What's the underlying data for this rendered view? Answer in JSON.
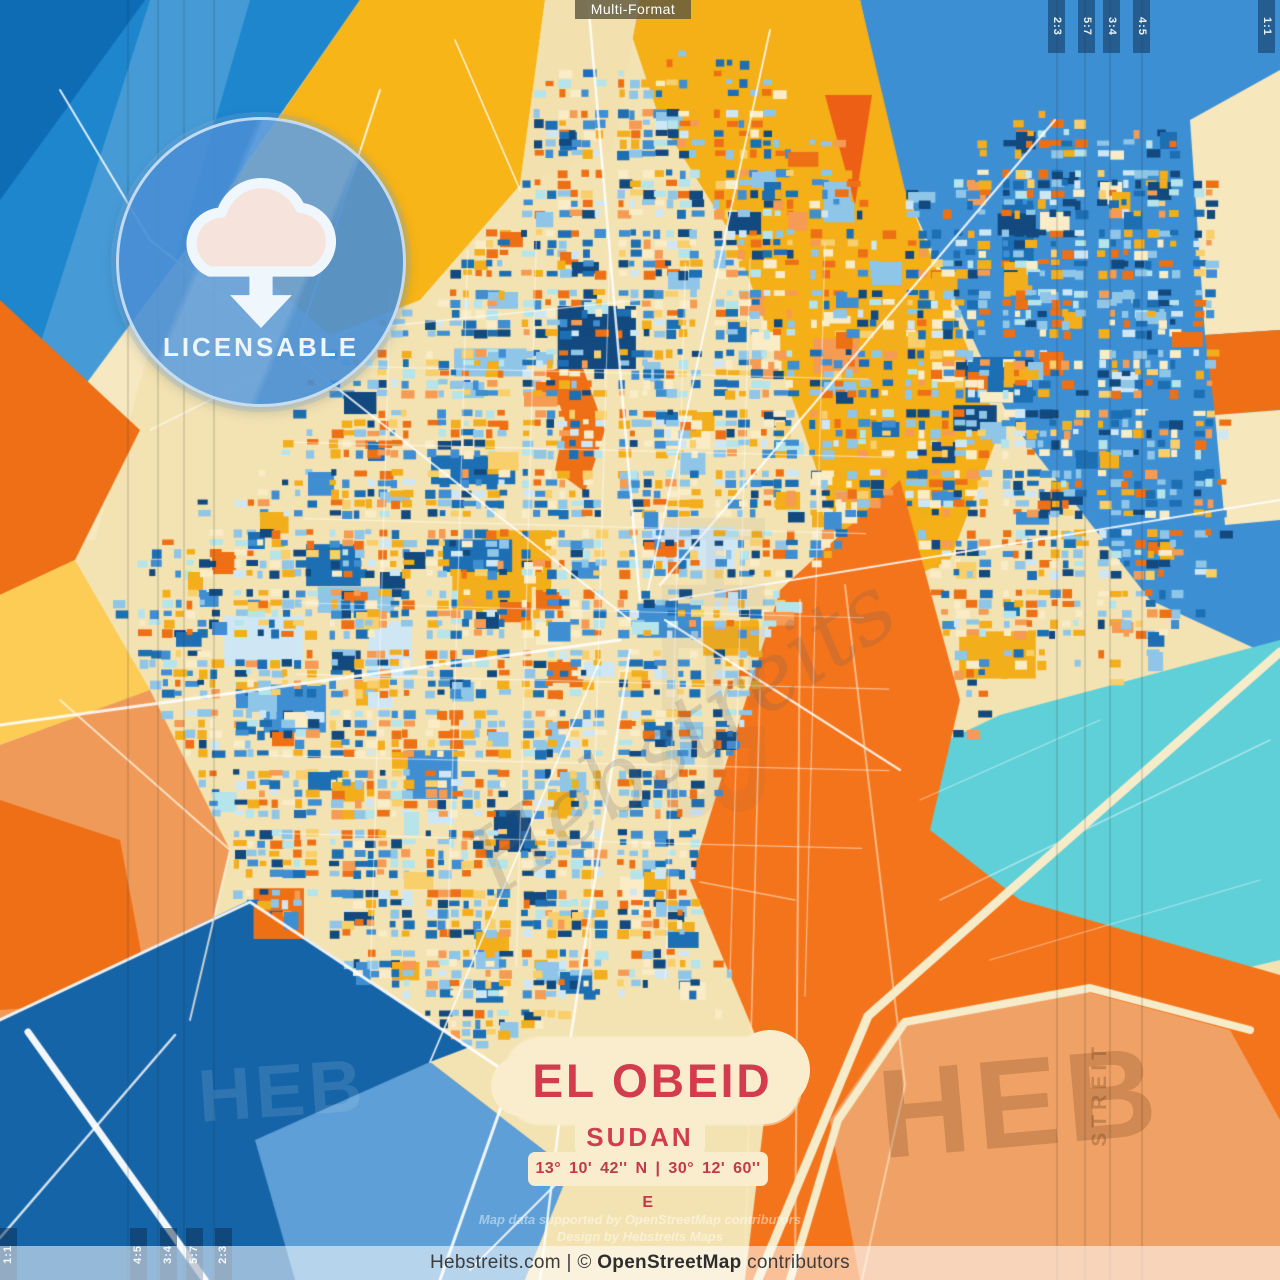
{
  "format_badge": {
    "label": "Multi-Format"
  },
  "ratio_markers": {
    "top_right": [
      "2:3",
      "5:7",
      "3:4",
      "4:5",
      "1:1"
    ],
    "bottom_left": [
      "1:1",
      "4:5",
      "3:4",
      "5:7",
      "2:3"
    ]
  },
  "license_badge": {
    "label": "LICENSABLE",
    "icon": "cloud-download"
  },
  "title_block": {
    "city": "EL OBEID",
    "country": "SUDAN",
    "coordinates": "13°  10'  42'' N  |  30°  12'  60'' E"
  },
  "watermarks": {
    "center_script": "Hebstreits",
    "center_block": "HEB",
    "bottom_right_block": "HEB",
    "side_vertical": "STREIT",
    "bottom_left_block": "HEB"
  },
  "attribution": {
    "line1": "Map data supported by OpenStreetMap contributors",
    "line2": "Design by Hebstreits Maps"
  },
  "footer": {
    "site": "Hebstreits.com",
    "separator": " | © ",
    "osm_bold": "OpenStreetMap",
    "suffix": " contributors"
  },
  "map": {
    "style": "blue-orange city poster map",
    "accent_red": "#d23c4c",
    "cream_panel": "#f9edcd",
    "marker_strip_color": "rgba(13,44,78,0.5)",
    "crop_line_color": "rgba(35,35,40,0.28)",
    "palette": {
      "sand": "#f4e3b2",
      "sand_light": "#f2e0ae",
      "tl_blue": "#1e86cd",
      "tl_deep": "#0d6cb4",
      "gold": "#f5af17",
      "gold_wedge": "#f7b517",
      "orange": "#ee6f16",
      "yellow": "#fccc55",
      "salmon": "#f09a5a",
      "br_orange": "#f4741b",
      "br_salmon": "#f0a266",
      "bl_blue": "#1564a8",
      "lake_blue": "#5d9fd6",
      "tr_blue": "#3d8fd4",
      "teal": "#5fd0d8",
      "cream_sliver": "#f6e7bd",
      "road_cream": "#f6ecca",
      "road_white": "rgba(255,255,255,0.85)"
    },
    "block_colors": [
      [
        "#12497e",
        9
      ],
      [
        "#1d6fb4",
        12
      ],
      [
        "#3f8ed2",
        10
      ],
      [
        "#8fc6e8",
        13
      ],
      [
        "#cfe7f5",
        5
      ],
      [
        "#b5e4ea",
        6
      ],
      [
        "#ee7015",
        12
      ],
      [
        "#f59b54",
        7
      ],
      [
        "#f3ae1c",
        12
      ],
      [
        "#f8cf6a",
        5
      ],
      [
        "#f9ecc6",
        9
      ]
    ]
  }
}
